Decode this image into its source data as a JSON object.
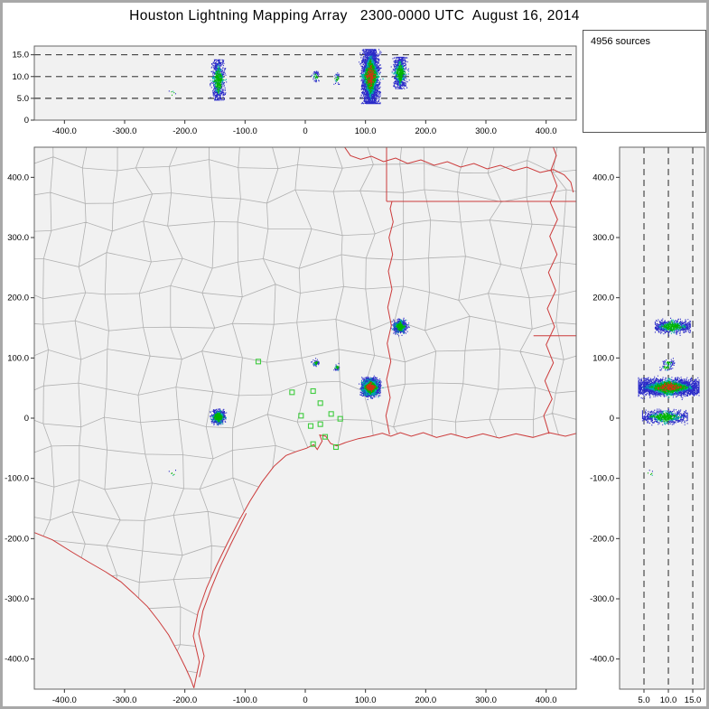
{
  "chart_data": {
    "type": "scatter",
    "title": "Houston Lightning Mapping Array   2300-0000 UTC  August 16, 2014",
    "sources_label": "4956 sources",
    "source_count": 4956,
    "panels": [
      {
        "id": "altitude-vs-eastwest",
        "position": "top",
        "xlabel": "",
        "ylabel": "",
        "xlim": [
          -450,
          450
        ],
        "ylim": [
          0,
          17
        ],
        "x_tick_values": [
          -400,
          -300,
          -200,
          -100,
          0,
          100,
          200,
          300,
          400
        ],
        "x_tick_labels": [
          "-400.0",
          "-300.0",
          "-200.0",
          "-100.0",
          "0",
          "100.0",
          "200.0",
          "300.0",
          "400.0"
        ],
        "y_tick_values": [
          0,
          5,
          10,
          15
        ],
        "y_tick_labels": [
          "0",
          "5.0",
          "10.0",
          "15.0"
        ],
        "dashed_y": [
          5,
          10,
          15
        ]
      },
      {
        "id": "plan-view-map",
        "position": "main",
        "xlabel": "",
        "ylabel": "",
        "xlim": [
          -450,
          450
        ],
        "ylim": [
          -450,
          450
        ],
        "x_tick_values": [
          -400,
          -300,
          -200,
          -100,
          0,
          100,
          200,
          300,
          400
        ],
        "x_tick_labels": [
          "-400.0",
          "-300.0",
          "-200.0",
          "-100.0",
          "0",
          "100.0",
          "200.0",
          "300.0",
          "400.0"
        ],
        "y_tick_values": [
          400,
          300,
          200,
          100,
          0,
          -100,
          -200,
          -300,
          -400
        ],
        "y_tick_labels": [
          "400.0",
          "300.0",
          "200.0",
          "100.0",
          "0",
          "-100.0",
          "-200.0",
          "-300.0",
          "-400.0"
        ]
      },
      {
        "id": "altitude-vs-northsouth",
        "position": "right",
        "xlabel": "",
        "ylabel": "",
        "xlim": [
          0,
          17.4
        ],
        "ylim": [
          -450,
          450
        ],
        "x_tick_values": [
          5,
          10,
          15
        ],
        "x_tick_labels": [
          "5.0",
          "10.0",
          "15.0"
        ],
        "y_tick_values": [
          400,
          300,
          200,
          100,
          0,
          -100,
          -200,
          -300,
          -400
        ],
        "y_tick_labels": [
          "400.0",
          "300.0",
          "200.0",
          "100.0",
          "0",
          "-100.0",
          "-200.0",
          "-300.0",
          "-400.0"
        ],
        "dashed_x": [
          5,
          10,
          15
        ]
      }
    ],
    "storm_cells": [
      {
        "name": "west-cell",
        "x": -145,
        "y": 2,
        "spread_km": 5,
        "alt_min": 4.6,
        "alt_max": 13.8,
        "count": 820,
        "has_red": false
      },
      {
        "name": "small-cell-a",
        "x": 17,
        "y": 92,
        "spread_km": 2.5,
        "alt_min": 8.8,
        "alt_max": 11.2,
        "count": 60,
        "has_red": false
      },
      {
        "name": "small-cell-b",
        "x": 52,
        "y": 84,
        "spread_km": 2.5,
        "alt_min": 8.2,
        "alt_max": 10.8,
        "count": 40,
        "has_red": false
      },
      {
        "name": "main-cell",
        "x": 108,
        "y": 51,
        "spread_km": 6.5,
        "alt_min": 3.8,
        "alt_max": 16.2,
        "count": 3280,
        "has_red": true
      },
      {
        "name": "east-cell",
        "x": 157,
        "y": 152,
        "spread_km": 5,
        "alt_min": 7.2,
        "alt_max": 14.4,
        "count": 750,
        "has_red": false
      },
      {
        "name": "stray-cell",
        "x": -222,
        "y": -92,
        "spread_km": 3,
        "alt_min": 5,
        "alt_max": 7.5,
        "count": 6,
        "has_red": false
      }
    ],
    "stations": [
      [
        -78,
        94
      ],
      [
        -22,
        43
      ],
      [
        13,
        45
      ],
      [
        25,
        25
      ],
      [
        -7,
        4
      ],
      [
        9,
        -13
      ],
      [
        25,
        -10
      ],
      [
        43,
        7
      ],
      [
        58,
        -1
      ],
      [
        33,
        -31
      ],
      [
        13,
        -43
      ],
      [
        51,
        -48
      ]
    ],
    "map_features": [
      {
        "name": "gulf-of-mexico-fill",
        "kind": "fill",
        "points": [
          [
            -185,
            -448
          ],
          [
            -176,
            -405
          ],
          [
            -186,
            -362
          ],
          [
            -178,
            -322
          ],
          [
            -164,
            -282
          ],
          [
            -148,
            -246
          ],
          [
            -129,
            -207
          ],
          [
            -110,
            -170
          ],
          [
            -92,
            -138
          ],
          [
            -72,
            -106
          ],
          [
            -52,
            -80
          ],
          [
            -32,
            -62
          ],
          [
            -14,
            -55
          ],
          [
            2,
            -50
          ],
          [
            14,
            -44
          ],
          [
            20,
            -52
          ],
          [
            28,
            -38
          ],
          [
            24,
            -28
          ],
          [
            34,
            -30
          ],
          [
            42,
            -42
          ],
          [
            52,
            -46
          ],
          [
            68,
            -40
          ],
          [
            88,
            -34
          ],
          [
            108,
            -30
          ],
          [
            128,
            -25
          ],
          [
            142,
            -30
          ],
          [
            158,
            -24
          ],
          [
            176,
            -30
          ],
          [
            196,
            -24
          ],
          [
            218,
            -32
          ],
          [
            242,
            -26
          ],
          [
            268,
            -33
          ],
          [
            295,
            -26
          ],
          [
            322,
            -33
          ],
          [
            350,
            -26
          ],
          [
            378,
            -32
          ],
          [
            405,
            -24
          ],
          [
            432,
            -30
          ],
          [
            455,
            -24
          ],
          [
            455,
            -455
          ],
          [
            -185,
            -455
          ]
        ]
      },
      {
        "name": "mexico-fill",
        "kind": "fill",
        "points": [
          [
            -455,
            -188
          ],
          [
            -420,
            -202
          ],
          [
            -388,
            -222
          ],
          [
            -358,
            -240
          ],
          [
            -332,
            -255
          ],
          [
            -306,
            -272
          ],
          [
            -284,
            -292
          ],
          [
            -262,
            -313
          ],
          [
            -244,
            -336
          ],
          [
            -227,
            -360
          ],
          [
            -212,
            -388
          ],
          [
            -199,
            -414
          ],
          [
            -190,
            -434
          ],
          [
            -185,
            -448
          ],
          [
            -190,
            -455
          ],
          [
            -455,
            -455
          ]
        ]
      },
      {
        "name": "gulf-coastline",
        "kind": "line",
        "points": [
          [
            -185,
            -448
          ],
          [
            -176,
            -405
          ],
          [
            -186,
            -362
          ],
          [
            -178,
            -322
          ],
          [
            -164,
            -282
          ],
          [
            -148,
            -246
          ],
          [
            -129,
            -207
          ],
          [
            -110,
            -170
          ],
          [
            -92,
            -138
          ],
          [
            -72,
            -106
          ],
          [
            -52,
            -80
          ],
          [
            -32,
            -62
          ],
          [
            -14,
            -55
          ],
          [
            2,
            -50
          ],
          [
            14,
            -44
          ],
          [
            20,
            -52
          ],
          [
            28,
            -38
          ],
          [
            24,
            -28
          ],
          [
            34,
            -30
          ],
          [
            42,
            -42
          ],
          [
            52,
            -46
          ],
          [
            68,
            -40
          ],
          [
            88,
            -34
          ],
          [
            108,
            -30
          ],
          [
            128,
            -25
          ],
          [
            142,
            -30
          ],
          [
            158,
            -24
          ],
          [
            176,
            -30
          ],
          [
            196,
            -24
          ],
          [
            218,
            -32
          ],
          [
            242,
            -26
          ],
          [
            268,
            -33
          ],
          [
            295,
            -26
          ],
          [
            322,
            -33
          ],
          [
            350,
            -26
          ],
          [
            378,
            -32
          ],
          [
            405,
            -24
          ],
          [
            432,
            -30
          ],
          [
            455,
            -24
          ]
        ]
      },
      {
        "name": "rio-grande-border",
        "kind": "line",
        "points": [
          [
            -455,
            -188
          ],
          [
            -420,
            -202
          ],
          [
            -388,
            -222
          ],
          [
            -358,
            -240
          ],
          [
            -332,
            -255
          ],
          [
            -306,
            -272
          ],
          [
            -284,
            -292
          ],
          [
            -262,
            -313
          ],
          [
            -244,
            -336
          ],
          [
            -227,
            -360
          ],
          [
            -212,
            -388
          ],
          [
            -199,
            -414
          ],
          [
            -190,
            -434
          ],
          [
            -185,
            -448
          ]
        ]
      },
      {
        "name": "barrier-island",
        "kind": "line",
        "points": [
          [
            -176,
            -430
          ],
          [
            -168,
            -395
          ],
          [
            -177,
            -358
          ],
          [
            -170,
            -320
          ],
          [
            -156,
            -282
          ],
          [
            -142,
            -248
          ],
          [
            -124,
            -210
          ],
          [
            -108,
            -178
          ],
          [
            -98,
            -158
          ]
        ]
      },
      {
        "name": "red-river-border",
        "kind": "line",
        "points": [
          [
            62,
            455
          ],
          [
            75,
            436
          ],
          [
            92,
            430
          ],
          [
            110,
            435
          ],
          [
            130,
            426
          ],
          [
            150,
            432
          ],
          [
            170,
            423
          ],
          [
            192,
            429
          ],
          [
            214,
            420
          ],
          [
            236,
            426
          ],
          [
            258,
            417
          ],
          [
            280,
            423
          ],
          [
            302,
            414
          ],
          [
            324,
            420
          ],
          [
            346,
            411
          ],
          [
            368,
            417
          ],
          [
            390,
            408
          ],
          [
            412,
            413
          ],
          [
            430,
            404
          ],
          [
            441,
            392
          ],
          [
            445,
            375
          ]
        ]
      },
      {
        "name": "oklahoma-arkansas-border",
        "kind": "line",
        "points": [
          [
            135,
            455
          ],
          [
            135,
            360
          ]
        ]
      },
      {
        "name": "state-border-33n",
        "kind": "line",
        "points": [
          [
            135,
            360
          ],
          [
            455,
            360
          ]
        ]
      },
      {
        "name": "sabine-river-border",
        "kind": "line",
        "points": [
          [
            140,
            -27
          ],
          [
            134,
            4
          ],
          [
            141,
            34
          ],
          [
            135,
            64
          ],
          [
            142,
            94
          ],
          [
            136,
            124
          ],
          [
            143,
            154
          ],
          [
            137,
            184
          ],
          [
            144,
            214
          ],
          [
            138,
            244
          ],
          [
            145,
            272
          ],
          [
            139,
            300
          ],
          [
            146,
            326
          ],
          [
            141,
            348
          ],
          [
            144,
            360
          ]
        ]
      },
      {
        "name": "mississippi-river",
        "kind": "line",
        "points": [
          [
            405,
            -26
          ],
          [
            396,
            4
          ],
          [
            410,
            32
          ],
          [
            398,
            62
          ],
          [
            412,
            92
          ],
          [
            400,
            122
          ],
          [
            414,
            152
          ],
          [
            402,
            182
          ],
          [
            416,
            212
          ],
          [
            404,
            242
          ],
          [
            418,
            272
          ],
          [
            406,
            302
          ],
          [
            419,
            330
          ],
          [
            407,
            358
          ],
          [
            418,
            386
          ],
          [
            408,
            412
          ],
          [
            417,
            436
          ],
          [
            410,
            455
          ]
        ]
      },
      {
        "name": "la-ms-border",
        "kind": "line",
        "points": [
          [
            379,
            137
          ],
          [
            450,
            137
          ]
        ]
      }
    ]
  },
  "colors": {
    "plot_bg": "#f1f1f1",
    "panel_border": "#666666",
    "county_line": "#b0b0b0",
    "state_line": "#cc3b3b",
    "tick_color": "#333333",
    "dash_color": "#111111",
    "point_blue": "#2a2ac8",
    "point_green": "#00b400",
    "point_cyan": "#00aaaa",
    "point_red": "#d23214",
    "station_green": "#3ecc3e",
    "window_frame": "#a8a8a8"
  }
}
